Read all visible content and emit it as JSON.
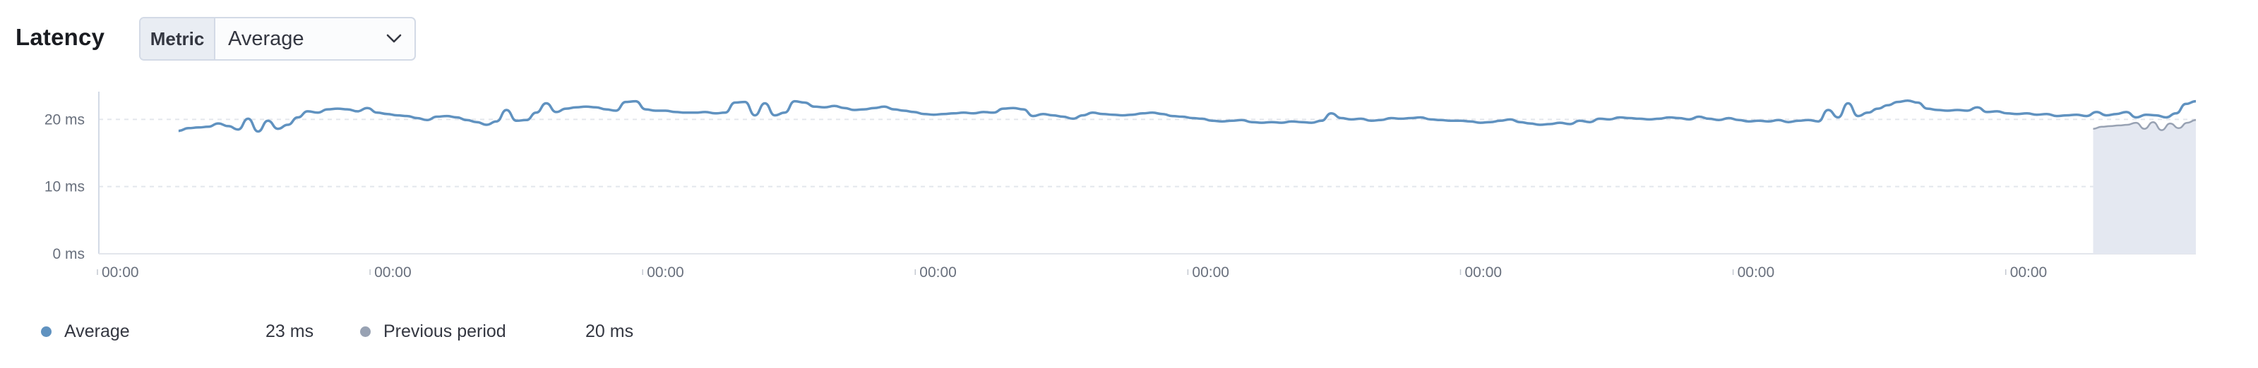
{
  "header": {
    "title": "Latency",
    "metric_prepend": "Metric",
    "metric_value": "Average"
  },
  "colors": {
    "average": "#6092c0",
    "previous_period": "#98a2b3",
    "previous_band": "#e4e8f1",
    "grid": "#e3e6ec",
    "axis": "#d3dae6"
  },
  "legend": {
    "items": [
      {
        "label": "Average",
        "value": "23 ms",
        "icon": "dot-icon",
        "color": "#6092c0"
      },
      {
        "label": "Previous period",
        "value": "20 ms",
        "icon": "dot-icon",
        "color": "#98a2b3"
      }
    ]
  },
  "chart_data": {
    "type": "line",
    "title": "",
    "xlabel": "",
    "ylabel": "",
    "ylim": [
      0,
      23.5
    ],
    "y_ticks": [
      0,
      10,
      20
    ],
    "y_tick_labels": [
      "0 ms",
      "10 ms",
      "20 ms"
    ],
    "x_tick_labels": [
      "00:00",
      "00:00",
      "00:00",
      "00:00",
      "00:00",
      "00:00",
      "00:00",
      "00:00"
    ],
    "x_tick_positions": [
      0,
      0.13,
      0.26,
      0.39,
      0.52,
      0.65,
      0.78,
      0.91
    ],
    "grid": true,
    "legend_placement": "bottom-left",
    "series": [
      {
        "name": "Average",
        "x_start": 0.038,
        "x_end": 1.0,
        "values": [
          18.3,
          18.7,
          18.8,
          18.9,
          19.4,
          19.0,
          18.5,
          20.1,
          18.2,
          19.8,
          18.6,
          19.2,
          20.3,
          21.2,
          21.0,
          21.5,
          21.6,
          21.5,
          21.2,
          21.7,
          21.0,
          20.8,
          20.6,
          20.5,
          20.2,
          19.9,
          20.4,
          20.5,
          20.3,
          19.9,
          19.6,
          19.2,
          19.7,
          21.4,
          19.8,
          19.9,
          21.0,
          22.4,
          21.1,
          21.6,
          21.8,
          21.9,
          21.8,
          21.5,
          21.3,
          22.6,
          22.7,
          21.5,
          21.3,
          21.3,
          21.1,
          21.0,
          21.0,
          21.1,
          20.9,
          21.0,
          22.5,
          22.6,
          20.6,
          22.4,
          20.6,
          21.0,
          22.7,
          22.5,
          21.9,
          21.8,
          22.0,
          21.7,
          21.4,
          21.5,
          21.7,
          21.9,
          21.5,
          21.3,
          21.1,
          20.8,
          20.7,
          20.8,
          20.9,
          21.0,
          20.9,
          21.1,
          21.0,
          21.6,
          21.7,
          21.5,
          20.5,
          20.8,
          20.6,
          20.4,
          20.1,
          20.6,
          21.0,
          20.8,
          20.7,
          20.6,
          20.7,
          20.9,
          21.0,
          20.8,
          20.5,
          20.4,
          20.2,
          20.1,
          19.8,
          19.7,
          19.8,
          19.9,
          19.6,
          19.5,
          19.6,
          19.5,
          19.7,
          19.6,
          19.5,
          19.8,
          20.9,
          20.2,
          20.0,
          20.1,
          19.8,
          19.9,
          20.2,
          20.1,
          20.2,
          20.3,
          20.0,
          19.9,
          19.8,
          19.8,
          19.7,
          19.5,
          19.6,
          19.8,
          20.0,
          19.6,
          19.4,
          19.2,
          19.3,
          19.5,
          19.3,
          19.8,
          19.6,
          20.1,
          20.0,
          20.3,
          20.2,
          20.1,
          20.0,
          20.1,
          20.3,
          20.2,
          20.0,
          20.4,
          20.1,
          19.9,
          20.2,
          19.9,
          19.7,
          19.8,
          19.7,
          19.9,
          19.6,
          19.8,
          19.9,
          19.7,
          21.4,
          20.3,
          22.4,
          20.5,
          21.0,
          21.6,
          22.1,
          22.6,
          22.8,
          22.5,
          21.6,
          21.4,
          21.3,
          21.4,
          21.3,
          21.8,
          21.1,
          21.2,
          20.9,
          20.8,
          20.9,
          20.7,
          20.8,
          20.5,
          20.6,
          20.7,
          20.5,
          21.1,
          20.6,
          20.8,
          21.1,
          20.3,
          20.7,
          20.6,
          20.3,
          20.9,
          22.3,
          22.7
        ]
      },
      {
        "name": "Previous period",
        "x_start": 0.951,
        "x_end": 1.0,
        "values": [
          18.6,
          18.9,
          19.0,
          19.1,
          19.2,
          19.5,
          18.6,
          19.6,
          18.4,
          19.4,
          18.7,
          19.5,
          19.9
        ]
      }
    ]
  }
}
